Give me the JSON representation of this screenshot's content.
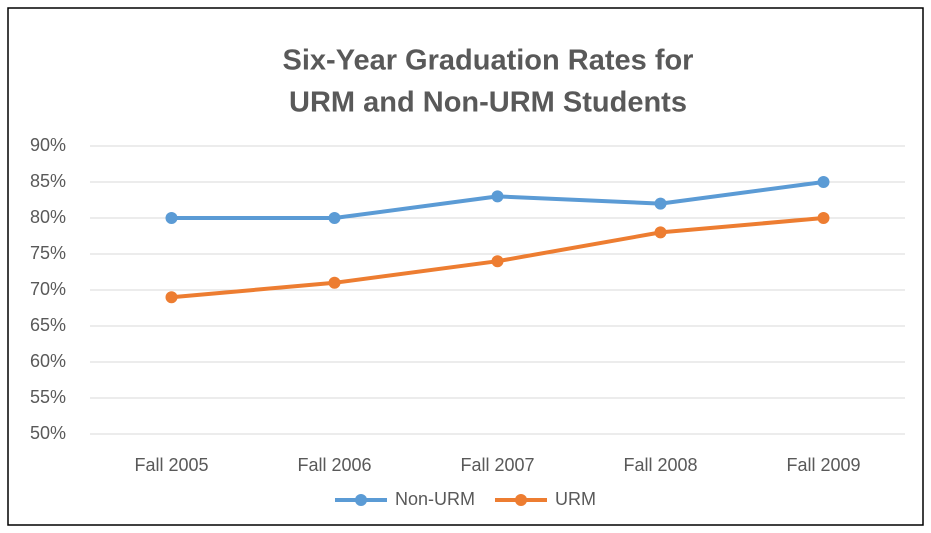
{
  "chart_data": {
    "type": "line",
    "title": [
      "Six-Year Graduation Rates for",
      "URM and Non-URM Students"
    ],
    "categories": [
      "Fall 2005",
      "Fall 2006",
      "Fall 2007",
      "Fall 2008",
      "Fall 2009"
    ],
    "series": [
      {
        "name": "Non-URM",
        "color": "#5b9bd5",
        "values": [
          80,
          80,
          83,
          82,
          85
        ]
      },
      {
        "name": "URM",
        "color": "#ed7d31",
        "values": [
          69,
          71,
          74,
          78,
          80
        ]
      }
    ],
    "ylim": [
      50,
      90
    ],
    "yticks": [
      {
        "value": 50,
        "label": "50%"
      },
      {
        "value": 55,
        "label": "55%"
      },
      {
        "value": 60,
        "label": "60%"
      },
      {
        "value": 65,
        "label": "65%"
      },
      {
        "value": 70,
        "label": "70%"
      },
      {
        "value": 75,
        "label": "75%"
      },
      {
        "value": 80,
        "label": "80%"
      },
      {
        "value": 85,
        "label": "85%"
      },
      {
        "value": 90,
        "label": "90%"
      }
    ],
    "grid": true,
    "legend": "bottom"
  }
}
